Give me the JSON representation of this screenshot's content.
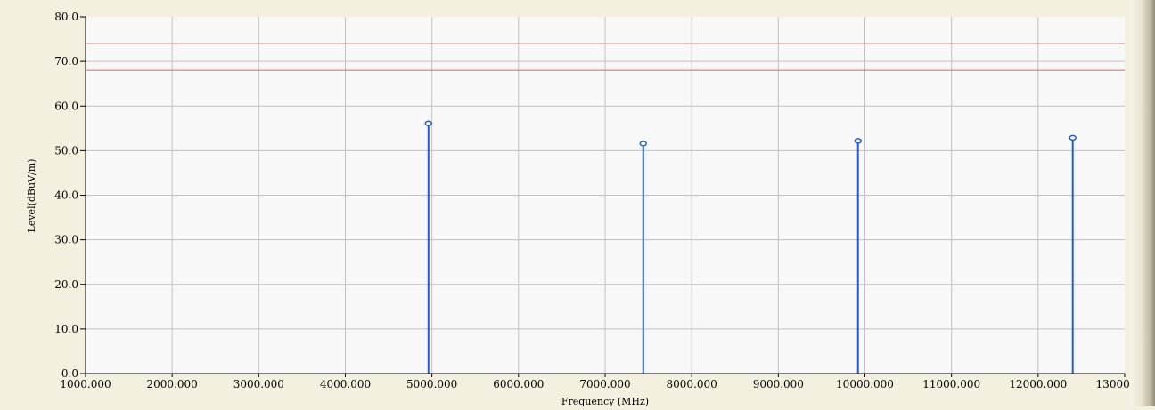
{
  "chart_data": {
    "type": "stem",
    "xlabel": "Frequency (MHz)",
    "ylabel": "Level(dBuV/m)",
    "xlim": [
      1000,
      13000
    ],
    "ylim": [
      0,
      80
    ],
    "x_ticks": [
      "1000.000",
      "2000.000",
      "3000.000",
      "4000.000",
      "5000.000",
      "6000.000",
      "7000.000",
      "8000.000",
      "9000.000",
      "10000.000",
      "11000.000",
      "12000.000",
      "13000.000"
    ],
    "y_ticks": [
      "0.0",
      "10.0",
      "20.0",
      "30.0",
      "40.0",
      "50.0",
      "60.0",
      "70.0",
      "80.0"
    ],
    "grid": true,
    "limit_lines": [
      74,
      68
    ],
    "points": [
      {
        "x": 4960,
        "y": 56.1
      },
      {
        "x": 7440,
        "y": 51.6
      },
      {
        "x": 9920,
        "y": 52.2
      },
      {
        "x": 12400,
        "y": 52.9
      }
    ]
  },
  "colors": {
    "plot_background": "#f8f8f8",
    "grid": "#c0c0c0",
    "limit_line": "#e06060",
    "stem": "#1f5fd0",
    "axis": "#000000"
  }
}
